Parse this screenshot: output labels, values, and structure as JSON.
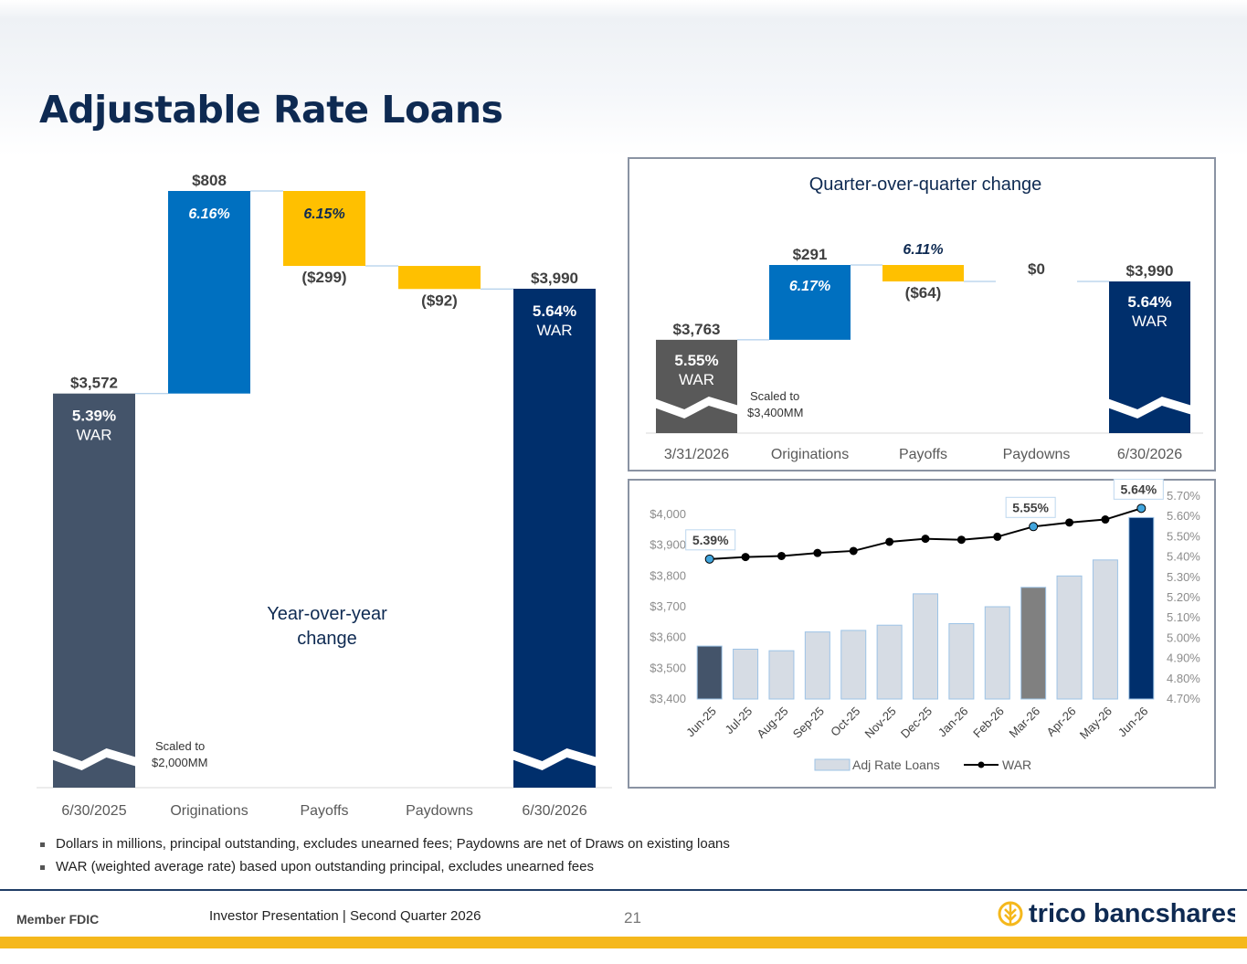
{
  "page": {
    "title": "Adjustable Rate Loans",
    "bullets": [
      "Dollars in millions, principal outstanding, excludes unearned fees; Paydowns are net of Draws on existing loans",
      "WAR (weighted average rate) based upon outstanding principal, excludes unearned fees"
    ],
    "footer": {
      "member_fdic": "Member FDIC",
      "presentation": "Investor Presentation  |  Second Quarter 2026",
      "page_number": "21",
      "brand": "trico bancshares"
    }
  },
  "chart_data": [
    {
      "type": "bar",
      "subtype": "waterfall",
      "caption": "Year-over-year change",
      "note": "Scaled to $2,000MM",
      "categories": [
        "6/30/2025",
        "Originations",
        "Payoffs",
        "Paydowns",
        "6/30/2026"
      ],
      "values": [
        3572,
        808,
        -299,
        -92,
        3990
      ],
      "value_labels": [
        "$3,572",
        "$808",
        "($299)",
        "($92)",
        "$3,990"
      ],
      "rate_labels": [
        "5.39%",
        "6.16%",
        "6.15%",
        "",
        "5.64%"
      ],
      "war_label": "WAR",
      "colors": [
        "#44546a",
        "#0070c0",
        "#ffc000",
        "#ffc000",
        "#002f6c"
      ],
      "ylim": [
        2000,
        4400
      ]
    },
    {
      "type": "bar",
      "subtype": "waterfall",
      "title": "Quarter-over-quarter change",
      "note_line1": "Scaled to",
      "note_line2": "$3,400MM",
      "categories": [
        "3/31/2026",
        "Originations",
        "Payoffs",
        "Paydowns",
        "6/30/2026"
      ],
      "values": [
        3763,
        291,
        -64,
        0,
        3990
      ],
      "value_labels": [
        "$3,763",
        "$291",
        "($64)",
        "$0",
        "$3,990"
      ],
      "rate_labels": [
        "5.55%",
        "6.17%",
        "6.11%",
        "",
        "5.64%"
      ],
      "war_label": "WAR",
      "colors": [
        "#595959",
        "#0070c0",
        "#ffc000",
        "#ffc000",
        "#002f6c"
      ],
      "ylim": [
        3400,
        4150
      ]
    },
    {
      "type": "bar",
      "subtype": "bar-line-combo",
      "categories": [
        "Jun-25",
        "Jul-25",
        "Aug-25",
        "Sep-25",
        "Oct-25",
        "Nov-25",
        "Dec-25",
        "Jan-26",
        "Feb-26",
        "Mar-26",
        "Apr-26",
        "May-26",
        "Jun-26"
      ],
      "series": [
        {
          "name": "Adj Rate Loans",
          "axis": "left",
          "values": [
            3572,
            3562,
            3557,
            3618,
            3623,
            3640,
            3742,
            3645,
            3700,
            3763,
            3800,
            3852,
            3990
          ]
        },
        {
          "name": "WAR",
          "axis": "right",
          "values": [
            5.39,
            5.4,
            5.405,
            5.42,
            5.43,
            5.475,
            5.49,
            5.485,
            5.5,
            5.55,
            5.57,
            5.585,
            5.64
          ]
        }
      ],
      "bar_colors": [
        "#44546a",
        "#d6dce4",
        "#d6dce4",
        "#d6dce4",
        "#d6dce4",
        "#d6dce4",
        "#d6dce4",
        "#d6dce4",
        "#d6dce4",
        "#808080",
        "#d6dce4",
        "#d6dce4",
        "#002f6c"
      ],
      "callouts": [
        {
          "index": 0,
          "label": "5.39%"
        },
        {
          "index": 9,
          "label": "5.55%"
        },
        {
          "index": 12,
          "label": "5.64%"
        }
      ],
      "highlight_points": [
        0,
        9,
        12
      ],
      "ylim_left": [
        3400,
        4000
      ],
      "yticks_left": [
        "$3,400",
        "$3,500",
        "$3,600",
        "$3,700",
        "$3,800",
        "$3,900",
        "$4,000"
      ],
      "ylim_right": [
        4.7,
        5.7
      ],
      "yticks_right": [
        "4.70%",
        "4.80%",
        "4.90%",
        "5.00%",
        "5.10%",
        "5.20%",
        "5.30%",
        "5.40%",
        "5.50%",
        "5.60%",
        "5.70%"
      ],
      "legend_position": "bottom"
    }
  ]
}
